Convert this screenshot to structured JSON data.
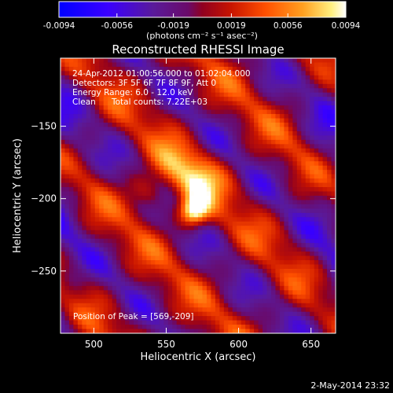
{
  "chart_data": {
    "type": "heatmap",
    "title": "Reconstructed RHESSI Image",
    "xlabel": "Heliocentric X (arcsec)",
    "ylabel": "Heliocentric Y (arcsec)",
    "xlim": [
      477,
      667
    ],
    "ylim": [
      -293,
      -103
    ],
    "xticks": [
      500,
      550,
      600,
      650
    ],
    "yticks": [
      -250,
      -200,
      -150
    ],
    "colorbar": {
      "min": -0.0094,
      "max": 0.0094,
      "ticks": [
        -0.0094,
        -0.0056,
        -0.0019,
        0.0019,
        0.0056,
        0.0094
      ],
      "tick_labels": [
        "-0.0094",
        "-0.0056",
        "-0.0019",
        "0.0019",
        "0.0056",
        "0.0094"
      ],
      "units_label": "(photons cm⁻² s⁻¹ asec⁻²)"
    },
    "annotations": {
      "time_range": "24-Apr-2012 01:00:56.000 to 01:02:04.000",
      "detectors": "Detectors: 3F 5F 6F 7F 8F 9F, Att 0",
      "energy": "Energy Range: 6.0 - 12.0 keV",
      "method": "Clean",
      "counts": "Total counts: 7.22E+03",
      "peak": "Position of Peak = [569,-209]"
    },
    "peak_position": [
      569,
      -209
    ],
    "sources": [
      {
        "x": 569,
        "y": -209,
        "amplitude": 1.0,
        "sigma": 7
      },
      {
        "x": 572,
        "y": -188,
        "amplitude": 0.55,
        "sigma": 12
      },
      {
        "x": 538,
        "y": -196,
        "amplitude": 0.38,
        "sigma": 10
      },
      {
        "x": 555,
        "y": -175,
        "amplitude": 0.3,
        "sigma": 10
      }
    ]
  },
  "footer": {
    "timestamp": "2-May-2014 23:32"
  },
  "colors": {
    "background": "#000000",
    "text": "#ffffff"
  }
}
